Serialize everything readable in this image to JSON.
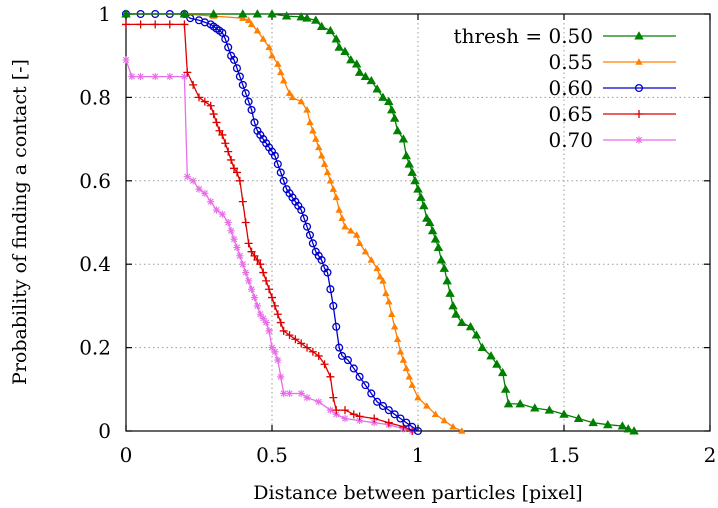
{
  "chart_data": {
    "type": "line",
    "xlabel": "Distance between particles [pixel]",
    "ylabel": "Probability of finding a contact [-]",
    "xlim": [
      0,
      2
    ],
    "ylim": [
      0,
      1
    ],
    "xticks": [
      "0",
      "0.5",
      "1",
      "1.5",
      "2"
    ],
    "xtick_values": [
      0,
      0.5,
      1,
      1.5,
      2
    ],
    "yticks": [
      "0",
      "0.2",
      "0.4",
      "0.6",
      "0.8",
      "1"
    ],
    "ytick_values": [
      0,
      0.2,
      0.4,
      0.6,
      0.8,
      1
    ],
    "grid": true,
    "legend_position": "top-right",
    "series": [
      {
        "name": "thresh = 0.50",
        "color": "#008000",
        "marker": "triangle",
        "points": [
          [
            0,
            1
          ],
          [
            0.2,
            1
          ],
          [
            0.3,
            1
          ],
          [
            0.4,
            1
          ],
          [
            0.45,
            1
          ],
          [
            0.5,
            1
          ],
          [
            0.55,
            0.995
          ],
          [
            0.6,
            0.993
          ],
          [
            0.62,
            0.99
          ],
          [
            0.65,
            0.985
          ],
          [
            0.67,
            0.97
          ],
          [
            0.7,
            0.96
          ],
          [
            0.72,
            0.94
          ],
          [
            0.73,
            0.92
          ],
          [
            0.75,
            0.91
          ],
          [
            0.77,
            0.89
          ],
          [
            0.79,
            0.88
          ],
          [
            0.8,
            0.86
          ],
          [
            0.82,
            0.85
          ],
          [
            0.84,
            0.84
          ],
          [
            0.86,
            0.82
          ],
          [
            0.88,
            0.8
          ],
          [
            0.9,
            0.79
          ],
          [
            0.91,
            0.77
          ],
          [
            0.92,
            0.75
          ],
          [
            0.93,
            0.72
          ],
          [
            0.95,
            0.7
          ],
          [
            0.96,
            0.66
          ],
          [
            0.97,
            0.64
          ],
          [
            0.98,
            0.62
          ],
          [
            0.99,
            0.6
          ],
          [
            1.0,
            0.58
          ],
          [
            1.01,
            0.56
          ],
          [
            1.02,
            0.54
          ],
          [
            1.03,
            0.51
          ],
          [
            1.04,
            0.5
          ],
          [
            1.05,
            0.48
          ],
          [
            1.06,
            0.46
          ],
          [
            1.07,
            0.44
          ],
          [
            1.08,
            0.41
          ],
          [
            1.09,
            0.39
          ],
          [
            1.1,
            0.36
          ],
          [
            1.11,
            0.33
          ],
          [
            1.12,
            0.3
          ],
          [
            1.13,
            0.28
          ],
          [
            1.15,
            0.26
          ],
          [
            1.18,
            0.25
          ],
          [
            1.2,
            0.23
          ],
          [
            1.22,
            0.2
          ],
          [
            1.25,
            0.18
          ],
          [
            1.27,
            0.16
          ],
          [
            1.29,
            0.14
          ],
          [
            1.3,
            0.1
          ],
          [
            1.31,
            0.065
          ],
          [
            1.35,
            0.065
          ],
          [
            1.4,
            0.055
          ],
          [
            1.45,
            0.05
          ],
          [
            1.5,
            0.04
          ],
          [
            1.55,
            0.03
          ],
          [
            1.6,
            0.02
          ],
          [
            1.65,
            0.015
          ],
          [
            1.7,
            0.012
          ],
          [
            1.72,
            0.005
          ],
          [
            1.74,
            0
          ]
        ]
      },
      {
        "name": "0.55",
        "color": "#ff7f00",
        "marker": "triangle-small",
        "points": [
          [
            0,
            1
          ],
          [
            0.2,
            1
          ],
          [
            0.3,
            0.995
          ],
          [
            0.4,
            0.99
          ],
          [
            0.42,
            0.985
          ],
          [
            0.43,
            0.975
          ],
          [
            0.45,
            0.96
          ],
          [
            0.47,
            0.94
          ],
          [
            0.49,
            0.92
          ],
          [
            0.5,
            0.9
          ],
          [
            0.52,
            0.88
          ],
          [
            0.53,
            0.86
          ],
          [
            0.54,
            0.84
          ],
          [
            0.56,
            0.81
          ],
          [
            0.57,
            0.8
          ],
          [
            0.6,
            0.79
          ],
          [
            0.62,
            0.77
          ],
          [
            0.63,
            0.74
          ],
          [
            0.64,
            0.72
          ],
          [
            0.65,
            0.7
          ],
          [
            0.66,
            0.68
          ],
          [
            0.67,
            0.66
          ],
          [
            0.68,
            0.64
          ],
          [
            0.69,
            0.62
          ],
          [
            0.7,
            0.6
          ],
          [
            0.71,
            0.58
          ],
          [
            0.72,
            0.56
          ],
          [
            0.73,
            0.53
          ],
          [
            0.74,
            0.51
          ],
          [
            0.75,
            0.49
          ],
          [
            0.77,
            0.48
          ],
          [
            0.79,
            0.47
          ],
          [
            0.8,
            0.45
          ],
          [
            0.82,
            0.43
          ],
          [
            0.84,
            0.41
          ],
          [
            0.86,
            0.39
          ],
          [
            0.87,
            0.37
          ],
          [
            0.88,
            0.36
          ],
          [
            0.89,
            0.33
          ],
          [
            0.9,
            0.31
          ],
          [
            0.91,
            0.28
          ],
          [
            0.92,
            0.25
          ],
          [
            0.93,
            0.22
          ],
          [
            0.94,
            0.19
          ],
          [
            0.95,
            0.17
          ],
          [
            0.96,
            0.15
          ],
          [
            0.97,
            0.13
          ],
          [
            0.98,
            0.11
          ],
          [
            1.0,
            0.08
          ],
          [
            1.03,
            0.06
          ],
          [
            1.06,
            0.04
          ],
          [
            1.09,
            0.025
          ],
          [
            1.12,
            0.01
          ],
          [
            1.15,
            0
          ]
        ]
      },
      {
        "name": "0.60",
        "color": "#0000cc",
        "marker": "circle",
        "points": [
          [
            0,
            1
          ],
          [
            0.05,
            1
          ],
          [
            0.1,
            1
          ],
          [
            0.15,
            1
          ],
          [
            0.2,
            1
          ],
          [
            0.22,
            0.99
          ],
          [
            0.25,
            0.985
          ],
          [
            0.27,
            0.98
          ],
          [
            0.29,
            0.975
          ],
          [
            0.3,
            0.97
          ],
          [
            0.31,
            0.965
          ],
          [
            0.32,
            0.96
          ],
          [
            0.33,
            0.955
          ],
          [
            0.34,
            0.94
          ],
          [
            0.35,
            0.92
          ],
          [
            0.36,
            0.9
          ],
          [
            0.37,
            0.89
          ],
          [
            0.38,
            0.87
          ],
          [
            0.39,
            0.85
          ],
          [
            0.4,
            0.83
          ],
          [
            0.41,
            0.81
          ],
          [
            0.42,
            0.79
          ],
          [
            0.43,
            0.77
          ],
          [
            0.44,
            0.74
          ],
          [
            0.45,
            0.72
          ],
          [
            0.46,
            0.71
          ],
          [
            0.47,
            0.7
          ],
          [
            0.48,
            0.69
          ],
          [
            0.49,
            0.68
          ],
          [
            0.5,
            0.67
          ],
          [
            0.51,
            0.66
          ],
          [
            0.52,
            0.64
          ],
          [
            0.53,
            0.62
          ],
          [
            0.54,
            0.6
          ],
          [
            0.55,
            0.58
          ],
          [
            0.56,
            0.57
          ],
          [
            0.57,
            0.56
          ],
          [
            0.58,
            0.55
          ],
          [
            0.59,
            0.54
          ],
          [
            0.6,
            0.53
          ],
          [
            0.61,
            0.51
          ],
          [
            0.62,
            0.49
          ],
          [
            0.63,
            0.47
          ],
          [
            0.64,
            0.45
          ],
          [
            0.65,
            0.43
          ],
          [
            0.66,
            0.42
          ],
          [
            0.67,
            0.41
          ],
          [
            0.68,
            0.39
          ],
          [
            0.69,
            0.38
          ],
          [
            0.7,
            0.34
          ],
          [
            0.71,
            0.3
          ],
          [
            0.72,
            0.25
          ],
          [
            0.73,
            0.2
          ],
          [
            0.74,
            0.18
          ],
          [
            0.76,
            0.17
          ],
          [
            0.78,
            0.15
          ],
          [
            0.8,
            0.13
          ],
          [
            0.82,
            0.11
          ],
          [
            0.84,
            0.09
          ],
          [
            0.86,
            0.07
          ],
          [
            0.88,
            0.06
          ],
          [
            0.9,
            0.05
          ],
          [
            0.92,
            0.04
          ],
          [
            0.94,
            0.03
          ],
          [
            0.96,
            0.02
          ],
          [
            0.98,
            0.01
          ],
          [
            1.0,
            0
          ]
        ]
      },
      {
        "name": "0.65",
        "color": "#dd0000",
        "marker": "plus",
        "points": [
          [
            0,
            0.975
          ],
          [
            0.05,
            0.975
          ],
          [
            0.1,
            0.975
          ],
          [
            0.15,
            0.975
          ],
          [
            0.2,
            0.975
          ],
          [
            0.21,
            0.86
          ],
          [
            0.23,
            0.83
          ],
          [
            0.25,
            0.8
          ],
          [
            0.27,
            0.79
          ],
          [
            0.29,
            0.78
          ],
          [
            0.3,
            0.76
          ],
          [
            0.31,
            0.74
          ],
          [
            0.32,
            0.72
          ],
          [
            0.33,
            0.71
          ],
          [
            0.34,
            0.69
          ],
          [
            0.35,
            0.67
          ],
          [
            0.36,
            0.65
          ],
          [
            0.37,
            0.63
          ],
          [
            0.38,
            0.62
          ],
          [
            0.39,
            0.6
          ],
          [
            0.4,
            0.55
          ],
          [
            0.41,
            0.5
          ],
          [
            0.42,
            0.45
          ],
          [
            0.43,
            0.43
          ],
          [
            0.44,
            0.42
          ],
          [
            0.45,
            0.41
          ],
          [
            0.46,
            0.4
          ],
          [
            0.47,
            0.38
          ],
          [
            0.48,
            0.36
          ],
          [
            0.49,
            0.34
          ],
          [
            0.5,
            0.32
          ],
          [
            0.51,
            0.3
          ],
          [
            0.52,
            0.28
          ],
          [
            0.53,
            0.26
          ],
          [
            0.54,
            0.24
          ],
          [
            0.56,
            0.23
          ],
          [
            0.58,
            0.22
          ],
          [
            0.6,
            0.21
          ],
          [
            0.62,
            0.2
          ],
          [
            0.64,
            0.19
          ],
          [
            0.66,
            0.18
          ],
          [
            0.68,
            0.16
          ],
          [
            0.7,
            0.13
          ],
          [
            0.71,
            0.08
          ],
          [
            0.72,
            0.05
          ],
          [
            0.75,
            0.05
          ],
          [
            0.78,
            0.04
          ],
          [
            0.8,
            0.035
          ],
          [
            0.85,
            0.03
          ],
          [
            0.9,
            0.02
          ],
          [
            0.95,
            0.01
          ],
          [
            0.98,
            0
          ]
        ]
      },
      {
        "name": "0.70",
        "color": "#e86ee8",
        "marker": "star",
        "points": [
          [
            0,
            0.89
          ],
          [
            0.02,
            0.85
          ],
          [
            0.05,
            0.85
          ],
          [
            0.1,
            0.85
          ],
          [
            0.15,
            0.85
          ],
          [
            0.2,
            0.85
          ],
          [
            0.21,
            0.61
          ],
          [
            0.23,
            0.6
          ],
          [
            0.25,
            0.58
          ],
          [
            0.27,
            0.57
          ],
          [
            0.29,
            0.55
          ],
          [
            0.31,
            0.53
          ],
          [
            0.33,
            0.52
          ],
          [
            0.35,
            0.5
          ],
          [
            0.36,
            0.48
          ],
          [
            0.37,
            0.46
          ],
          [
            0.38,
            0.44
          ],
          [
            0.39,
            0.42
          ],
          [
            0.4,
            0.4
          ],
          [
            0.41,
            0.38
          ],
          [
            0.42,
            0.36
          ],
          [
            0.43,
            0.34
          ],
          [
            0.44,
            0.32
          ],
          [
            0.45,
            0.3
          ],
          [
            0.46,
            0.28
          ],
          [
            0.47,
            0.27
          ],
          [
            0.48,
            0.26
          ],
          [
            0.49,
            0.24
          ],
          [
            0.5,
            0.2
          ],
          [
            0.51,
            0.19
          ],
          [
            0.52,
            0.17
          ],
          [
            0.53,
            0.13
          ],
          [
            0.54,
            0.09
          ],
          [
            0.56,
            0.09
          ],
          [
            0.6,
            0.09
          ],
          [
            0.62,
            0.08
          ],
          [
            0.66,
            0.07
          ],
          [
            0.7,
            0.05
          ],
          [
            0.72,
            0.04
          ],
          [
            0.75,
            0.03
          ],
          [
            0.8,
            0.025
          ],
          [
            0.85,
            0.02
          ],
          [
            0.9,
            0.015
          ],
          [
            0.95,
            0.005
          ],
          [
            0.98,
            0
          ]
        ]
      }
    ]
  }
}
